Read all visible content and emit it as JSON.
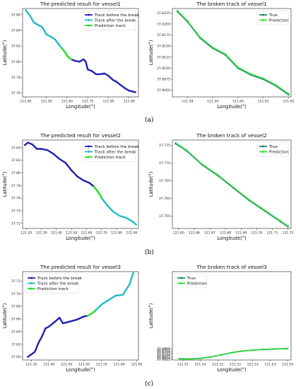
{
  "colors": {
    "before": "#1f1fb4",
    "after": "#1fbcc8",
    "pred": "#22e022",
    "true": "#1f8a7a",
    "predline": "#33e033"
  },
  "captions": [
    "(a)",
    "(b)",
    "(c)"
  ],
  "chart_data": [
    {
      "id": "a-left",
      "type": "line",
      "title": "The predicted result for vessel1",
      "xlabel": "Longitude(°)",
      "ylabel": "Latitude(°)",
      "xlim": [
        121.385,
        121.945
      ],
      "ylim": [
        37.755,
        37.868
      ],
      "xticks": [
        121.4,
        121.5,
        121.6,
        121.7,
        121.8,
        121.9
      ],
      "xtick_labels": [
        "121.40",
        "121.50",
        "121.60",
        "121.70",
        "121.80",
        "121.90"
      ],
      "yticks": [
        37.76,
        37.78,
        37.8,
        37.82,
        37.84,
        37.86
      ],
      "ytick_labels": [
        "37.76",
        "37.78",
        "37.80",
        "37.82",
        "37.84",
        "37.86"
      ],
      "legend": "top-right",
      "series": [
        {
          "name": "Track before the break",
          "color": "before",
          "x": [
            121.62,
            121.64,
            121.66,
            121.68,
            121.69,
            121.7,
            121.72,
            121.74,
            121.76,
            121.78,
            121.8,
            121.82,
            121.84,
            121.86,
            121.88,
            121.9,
            121.93
          ],
          "y": [
            37.803,
            37.801,
            37.8,
            37.803,
            37.8,
            37.79,
            37.788,
            37.784,
            37.784,
            37.785,
            37.782,
            37.777,
            37.774,
            37.77,
            37.766,
            37.763,
            37.761
          ]
        },
        {
          "name": "Track after the break",
          "color": "after",
          "x": [
            121.4,
            121.42,
            121.44,
            121.46,
            121.48,
            121.5,
            121.52,
            121.54,
            121.56,
            121.575
          ],
          "y": [
            37.866,
            37.859,
            37.85,
            37.847,
            37.844,
            37.835,
            37.832,
            37.829,
            37.822,
            37.817
          ]
        },
        {
          "name": "Prediction track",
          "color": "pred",
          "x": [
            121.575,
            121.59,
            121.605,
            121.62
          ],
          "y": [
            37.817,
            37.812,
            37.806,
            37.803
          ]
        }
      ]
    },
    {
      "id": "a-right",
      "type": "line",
      "title": "The broken track of vessel1",
      "xlabel": "Longitude(°)",
      "ylabel": "Latitude(°)",
      "xlim": [
        121.574,
        121.621
      ],
      "ylim": [
        37.8035,
        37.8235
      ],
      "xticks": [
        121.58,
        121.59,
        121.6,
        121.61,
        121.62
      ],
      "xtick_labels": [
        "121.58",
        "121.59",
        "121.60",
        "121.61",
        "121.62"
      ],
      "yticks": [
        37.805,
        37.8075,
        37.81,
        37.8125,
        37.815,
        37.8175,
        37.82,
        37.8225
      ],
      "ytick_labels": [
        "37.8050",
        "37.8075",
        "37.8100",
        "37.8125",
        "37.8150",
        "37.8175",
        "37.8200",
        "37.8225"
      ],
      "legend": "top-right",
      "series": [
        {
          "name": "True",
          "color": "true",
          "x": [
            121.576,
            121.58,
            121.585,
            121.59,
            121.595,
            121.6,
            121.605,
            121.61,
            121.615,
            121.62
          ],
          "y": [
            37.8228,
            37.8205,
            37.8168,
            37.8145,
            37.813,
            37.81,
            37.8085,
            37.8075,
            37.806,
            37.804
          ]
        },
        {
          "name": "Prediction",
          "color": "predline",
          "x": [
            121.576,
            121.58,
            121.585,
            121.59,
            121.595,
            121.6,
            121.605,
            121.61,
            121.615,
            121.62
          ],
          "y": [
            37.823,
            37.8207,
            37.817,
            37.8147,
            37.8132,
            37.8102,
            37.8087,
            37.8077,
            37.8062,
            37.8042
          ]
        }
      ]
    },
    {
      "id": "b-left",
      "type": "line",
      "title": "The predicted result for vessel2",
      "xlabel": "Longitude(°)",
      "ylabel": "Latitude(°)",
      "xlim": [
        121.175,
        121.945
      ],
      "ylim": [
        37.712,
        37.852
      ],
      "xticks": [
        121.2,
        121.3,
        121.4,
        121.5,
        121.6,
        121.7,
        121.8,
        121.9
      ],
      "xtick_labels": [
        "121.20",
        "121.30",
        "121.40",
        "121.50",
        "121.60",
        "121.70",
        "121.80",
        "121.90"
      ],
      "yticks": [
        37.72,
        37.74,
        37.76,
        37.78,
        37.8,
        37.82,
        37.84
      ],
      "ytick_labels": [
        "37.72",
        "37.74",
        "37.76",
        "37.78",
        "37.80",
        "37.82",
        "37.84"
      ],
      "legend": "top-right",
      "series": [
        {
          "name": "Track before the break",
          "color": "before",
          "x": [
            121.19,
            121.21,
            121.24,
            121.27,
            121.3,
            121.34,
            121.38,
            121.42,
            121.46,
            121.5,
            121.54,
            121.58,
            121.62,
            121.65
          ],
          "y": [
            37.844,
            37.848,
            37.845,
            37.838,
            37.838,
            37.836,
            37.83,
            37.822,
            37.816,
            37.804,
            37.794,
            37.788,
            37.784,
            37.778
          ]
        },
        {
          "name": "Track after the break",
          "color": "after",
          "x": [
            121.7,
            121.74,
            121.78,
            121.82,
            121.86,
            121.9,
            121.93
          ],
          "y": [
            37.76,
            37.748,
            37.738,
            37.732,
            37.729,
            37.724,
            37.718
          ]
        },
        {
          "name": "Prediction track",
          "color": "pred",
          "x": [
            121.65,
            121.67,
            121.69,
            121.7
          ],
          "y": [
            37.778,
            37.772,
            37.765,
            37.76
          ]
        }
      ]
    },
    {
      "id": "b-right",
      "type": "line",
      "title": "The broken track of vessel2",
      "xlabel": "Longitude(°)",
      "ylabel": "Latitude(°)",
      "xlim": [
        121.646,
        121.722
      ],
      "ylim": [
        37.7515,
        37.7765
      ],
      "xticks": [
        121.65,
        121.66,
        121.67,
        121.68,
        121.69,
        121.7,
        121.71,
        121.72
      ],
      "xtick_labels": [
        "121.65",
        "121.66",
        "121.67",
        "121.68",
        "121.69",
        "121.70",
        "121.71",
        "121.72"
      ],
      "yticks": [
        37.755,
        37.76,
        37.765,
        37.77,
        37.775
      ],
      "ytick_labels": [
        "37.755",
        "37.760",
        "37.765",
        "37.770",
        "37.775"
      ],
      "legend": "top-right",
      "series": [
        {
          "name": "True",
          "color": "true",
          "x": [
            121.648,
            121.655,
            121.665,
            121.675,
            121.685,
            121.695,
            121.705,
            121.715,
            121.72
          ],
          "y": [
            37.7755,
            37.7735,
            37.7695,
            37.7665,
            37.763,
            37.7595,
            37.7565,
            37.7535,
            37.752
          ]
        },
        {
          "name": "Prediction",
          "color": "predline",
          "x": [
            121.648,
            121.655,
            121.665,
            121.675,
            121.685,
            121.695,
            121.705,
            121.715,
            121.72
          ],
          "y": [
            37.7757,
            37.7737,
            37.7697,
            37.7667,
            37.7632,
            37.7597,
            37.7567,
            37.7537,
            37.7522
          ]
        }
      ]
    },
    {
      "id": "c-left",
      "type": "line",
      "title": "The predicted result for vessel3",
      "xlabel": "Longitude(°)",
      "ylabel": "Latitude(°)",
      "xlim": [
        121.325,
        121.655
      ],
      "ylim": [
        37.595,
        37.735
      ],
      "xticks": [
        121.35,
        121.4,
        121.45,
        121.5,
        121.55,
        121.6,
        121.65
      ],
      "xtick_labels": [
        "121.35",
        "121.40",
        "121.45",
        "121.50",
        "121.55",
        "121.60",
        "121.65"
      ],
      "yticks": [
        37.6,
        37.62,
        37.64,
        37.66,
        37.68,
        37.7,
        37.72
      ],
      "ytick_labels": [
        "37.60",
        "37.62",
        "37.64",
        "37.66",
        "37.68",
        "37.70",
        "37.72"
      ],
      "legend": "top-left",
      "series": [
        {
          "name": "Track before the break",
          "color": "before",
          "x": [
            121.34,
            121.36,
            121.37,
            121.38,
            121.39,
            121.4,
            121.42,
            121.43,
            121.44,
            121.46,
            121.48,
            121.5,
            121.51
          ],
          "y": [
            37.6,
            37.608,
            37.622,
            37.632,
            37.645,
            37.648,
            37.657,
            37.662,
            37.653,
            37.656,
            37.659,
            37.664,
            37.665
          ]
        },
        {
          "name": "Track after the break",
          "color": "after",
          "x": [
            121.53,
            121.55,
            121.57,
            121.59,
            121.61,
            121.63,
            121.64
          ],
          "y": [
            37.672,
            37.683,
            37.69,
            37.697,
            37.698,
            37.715,
            37.733
          ]
        },
        {
          "name": "Prediction track",
          "color": "pred",
          "x": [
            121.51,
            121.52,
            121.53
          ],
          "y": [
            37.665,
            37.668,
            37.672
          ]
        }
      ]
    },
    {
      "id": "c-right",
      "type": "line",
      "title": "The broken track of vessel3",
      "xlabel": "Longitude(°)",
      "ylabel": "Latitude(°)",
      "xlim": [
        121.507,
        121.541
      ],
      "ylim": [
        37.662,
        37.8005
      ],
      "xticks": [
        121.51,
        121.515,
        121.52,
        121.525,
        121.53,
        121.535,
        121.54
      ],
      "xtick_labels": [
        "121.51",
        "121.52",
        "121.52",
        "121.53",
        "121.53",
        "121.53",
        "121.54"
      ],
      "yticks": [
        37.6625,
        37.665,
        37.6675,
        37.67,
        37.6725,
        37.675,
        37.6775,
        37.68
      ],
      "ytick_labels": [
        "37.6625",
        "37.6650",
        "37.6675",
        "37.6700",
        "37.6725",
        "37.6750",
        "37.6775",
        "37.6800"
      ],
      "legend": "top-left",
      "series": [
        {
          "name": "True",
          "color": "true",
          "x": [
            121.509,
            121.512,
            121.515,
            121.518,
            121.521,
            121.524,
            121.527,
            121.53,
            121.533,
            121.536,
            121.539,
            121.54
          ],
          "y": [
            37.664,
            37.6636,
            37.6645,
            37.6668,
            37.67,
            37.6735,
            37.676,
            37.6775,
            37.6785,
            37.6792,
            37.6798,
            37.68
          ]
        },
        {
          "name": "Prediction",
          "color": "predline",
          "x": [
            121.509,
            121.512,
            121.515,
            121.518,
            121.521,
            121.524,
            121.527,
            121.53,
            121.533,
            121.536,
            121.539,
            121.54
          ],
          "y": [
            37.6638,
            37.6634,
            37.6643,
            37.6666,
            37.6698,
            37.6733,
            37.6758,
            37.6773,
            37.6783,
            37.679,
            37.6796,
            37.6798
          ]
        }
      ]
    }
  ]
}
